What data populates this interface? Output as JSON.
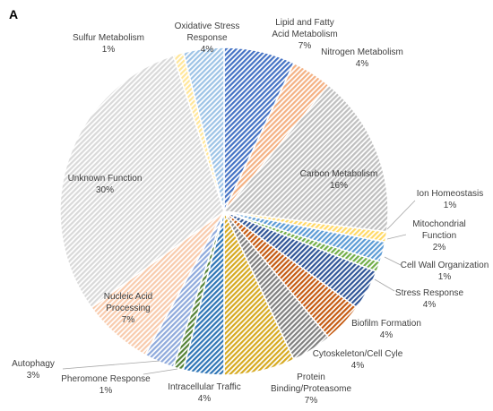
{
  "panel_label": "A",
  "chart_data": {
    "type": "pie",
    "title": "",
    "start_angle_deg": 0,
    "direction": "clockwise",
    "slices": [
      {
        "label": "Lipid and Fatty Acid Metabolism",
        "value": 7,
        "display": "7%",
        "color": "#4472C4"
      },
      {
        "label": "Nitrogen Metabolism",
        "value": 4,
        "display": "4%",
        "color": "#F4B183"
      },
      {
        "label": "Carbon Metabolism",
        "value": 16,
        "display": "16%",
        "color": "#BFBFBF"
      },
      {
        "label": "Ion Homeostasis",
        "value": 1,
        "display": "1%",
        "color": "#FFD966"
      },
      {
        "label": "Mitochondrial Function",
        "value": 2,
        "display": "2%",
        "color": "#5B9BD5"
      },
      {
        "label": "Cell Wall Organization",
        "value": 1,
        "display": "1%",
        "color": "#70AD47"
      },
      {
        "label": "Stress Response",
        "value": 4,
        "display": "4%",
        "color": "#2F5597"
      },
      {
        "label": "Biofilm Formation",
        "value": 4,
        "display": "4%",
        "color": "#C55A11"
      },
      {
        "label": "Cytoskeleton/Cell Cyle",
        "value": 4,
        "display": "4%",
        "color": "#7F7F7F"
      },
      {
        "label": "Protein Binding/Proteasome",
        "value": 7,
        "display": "7%",
        "color": "#D6A91F"
      },
      {
        "label": "Intracellular Traffic",
        "value": 4,
        "display": "4%",
        "color": "#2E75B6"
      },
      {
        "label": "Pheromone Response",
        "value": 1,
        "display": "1%",
        "color": "#548235"
      },
      {
        "label": "Autophagy",
        "value": 3,
        "display": "3%",
        "color": "#8FAADC"
      },
      {
        "label": "Nucleic Acid Processing",
        "value": 7,
        "display": "7%",
        "color": "#F8CBAD"
      },
      {
        "label": "Unknown Function",
        "value": 30,
        "display": "30%",
        "color": "#D9D9D9"
      },
      {
        "label": "Sulfur Metabolism",
        "value": 1,
        "display": "1%",
        "color": "#FFE699"
      },
      {
        "label": "Oxidative Stress Response",
        "value": 4,
        "display": "4%",
        "color": "#9DC3E6"
      }
    ]
  }
}
